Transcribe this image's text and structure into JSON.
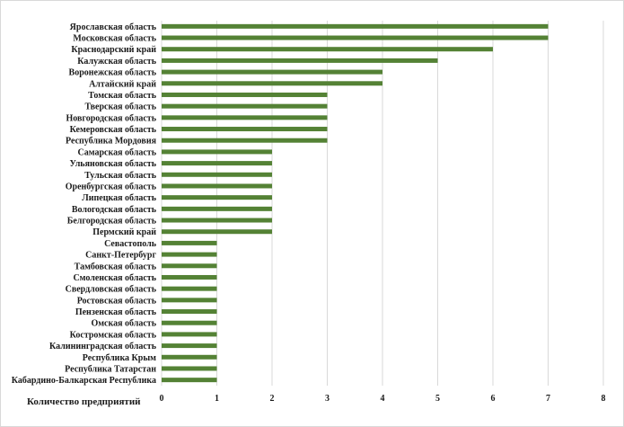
{
  "chart_data": {
    "type": "bar",
    "orientation": "horizontal",
    "categories": [
      "Ярославская область",
      "Московская область",
      "Краснодарский край",
      "Калужская область",
      "Воронежская область",
      "Алтайский край",
      "Томская область",
      "Тверская область",
      "Новгородская область",
      "Кемеровская область",
      "Республика Мордовия",
      "Самарская область",
      "Ульяновская область",
      "Тульская область",
      "Оренбургская область",
      "Липецкая область",
      "Вологодская область",
      "Белгородская область",
      "Пермский край",
      "Севастополь",
      "Санкт-Петербург",
      "Тамбовская область",
      "Смоленская область",
      "Свердловская область",
      "Ростовская область",
      "Пензенская область",
      "Омская область",
      "Костромская область",
      "Калининградская область",
      "Республика Крым",
      "Республика Татарстан",
      "Кабардино-Балкарская Республика"
    ],
    "values": [
      7,
      7,
      6,
      5,
      4,
      4,
      3,
      3,
      3,
      3,
      3,
      2,
      2,
      2,
      2,
      2,
      2,
      2,
      2,
      1,
      1,
      1,
      1,
      1,
      1,
      1,
      1,
      1,
      1,
      1,
      1,
      1
    ],
    "xlabel": "Количество предприятий",
    "ylabel": "",
    "xlim": [
      0,
      8
    ],
    "xticks": [
      0,
      1,
      2,
      3,
      4,
      5,
      6,
      7,
      8
    ],
    "grid": "vertical",
    "legend": "none",
    "bar_color": "#548235",
    "grid_color": "#d9d9d9"
  }
}
